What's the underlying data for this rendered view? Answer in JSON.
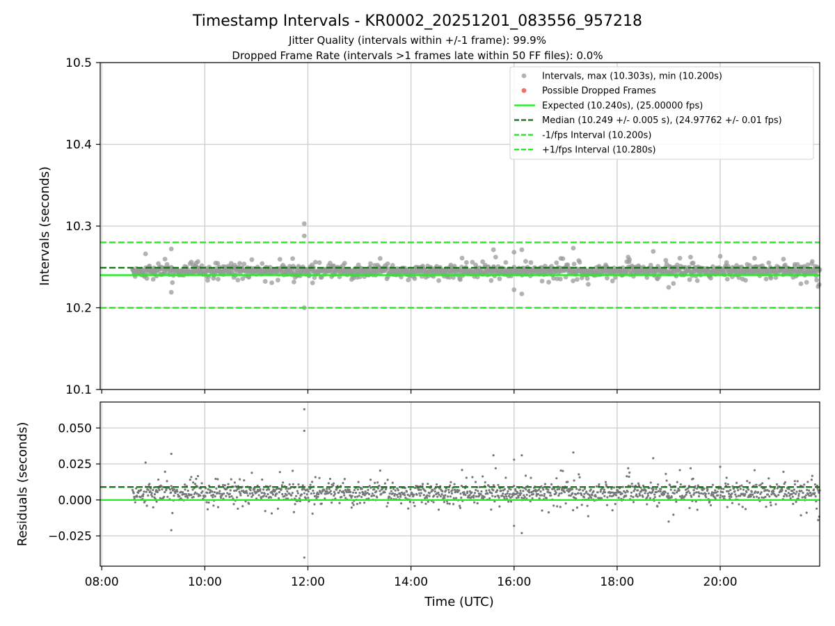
{
  "title": "Timestamp Intervals - KR0002_20251201_083556_957218",
  "subtitle1": "Jitter Quality (intervals within +/-1 frame): 99.9%",
  "subtitle2": "Dropped Frame Rate (intervals >1 frames late within 50 FF files): 0.0%",
  "colors": {
    "interval_points": "#999999",
    "residual_points": "#777777",
    "dropped": "#f0605e",
    "expected": "#22ee22",
    "median": "#117711",
    "bounds": "#22ee22",
    "grid": "#cccccc"
  },
  "chart_data": [
    {
      "type": "scatter",
      "name": "intervals-panel",
      "ylabel": "Intervals (seconds)",
      "ylim": [
        10.1,
        10.5
      ],
      "yticks": [
        10.1,
        10.2,
        10.3,
        10.4,
        10.5
      ],
      "ytick_labels": [
        "10.1",
        "10.2",
        "10.3",
        "10.4",
        "10.5"
      ],
      "xlim_hours": [
        7.97,
        21.93
      ],
      "grid": true,
      "legend_position": "top-right",
      "legend": [
        {
          "label": "Intervals, max (10.303s), min (10.200s)",
          "kind": "dot",
          "color": "#999999"
        },
        {
          "label": "Possible Dropped Frames",
          "kind": "dot",
          "color": "#f0605e"
        },
        {
          "label": "Expected (10.240s), (25.00000 fps)",
          "kind": "solid",
          "color": "#22ee22"
        },
        {
          "label": "Median (10.249 +/- 0.005 s), (24.97762 +/- 0.01 fps)",
          "kind": "dashed",
          "color": "#117711"
        },
        {
          "label": "-1/fps Interval (10.200s)",
          "kind": "dashed",
          "color": "#22ee22"
        },
        {
          "label": "+1/fps Interval (10.280s)",
          "kind": "dashed",
          "color": "#22ee22"
        }
      ],
      "reference_lines": [
        {
          "name": "expected",
          "value": 10.24,
          "style": "solid",
          "color": "#22ee22"
        },
        {
          "name": "median",
          "value": 10.249,
          "style": "dashed",
          "color": "#117711"
        },
        {
          "name": "minus-one-fps",
          "value": 10.2,
          "style": "dashed",
          "color": "#22ee22"
        },
        {
          "name": "plus-one-fps",
          "value": 10.28,
          "style": "dashed",
          "color": "#22ee22"
        }
      ],
      "data_range_hours": [
        8.6,
        21.93
      ],
      "typical_interval_range": [
        10.235,
        10.255
      ],
      "series": [
        {
          "name": "Intervals",
          "points": [
            [
              11.93,
              10.303
            ],
            [
              11.93,
              10.288
            ],
            [
              11.93,
              10.2
            ],
            [
              9.35,
              10.272
            ],
            [
              15.6,
              10.271
            ],
            [
              16.15,
              10.271
            ],
            [
              17.15,
              10.273
            ],
            [
              18.7,
              10.269
            ],
            [
              8.85,
              10.266
            ],
            [
              16.0,
              10.268
            ],
            [
              9.35,
              10.219
            ],
            [
              16.15,
              10.217
            ],
            [
              16.0,
              10.222
            ],
            [
              19.0,
              10.225
            ],
            [
              20.0,
              10.263
            ],
            [
              21.9,
              10.226
            ]
          ]
        },
        {
          "name": "Possible Dropped Frames",
          "points": []
        }
      ]
    },
    {
      "type": "scatter",
      "name": "residuals-panel",
      "ylabel": "Residuals (seconds)",
      "xlabel": "Time (UTC)",
      "ylim": [
        -0.046,
        0.068
      ],
      "yticks": [
        -0.025,
        0.0,
        0.025,
        0.05
      ],
      "ytick_labels": [
        "−0.025",
        "0.000",
        "0.025",
        "0.050"
      ],
      "xlim_hours": [
        7.97,
        21.93
      ],
      "xticks_hours": [
        8,
        10,
        12,
        14,
        16,
        18,
        20
      ],
      "xtick_labels": [
        "08:00",
        "10:00",
        "12:00",
        "14:00",
        "16:00",
        "18:00",
        "20:00"
      ],
      "grid": true,
      "reference_lines": [
        {
          "name": "zero",
          "value": 0.0,
          "style": "solid",
          "color": "#22ee22"
        },
        {
          "name": "median-offset",
          "value": 0.009,
          "style": "dashed",
          "color": "#117711"
        }
      ],
      "series": [
        {
          "name": "Residuals",
          "points": [
            [
              11.93,
              0.063
            ],
            [
              11.93,
              0.047
            ],
            [
              11.93,
              -0.04
            ],
            [
              9.35,
              0.032
            ],
            [
              15.6,
              0.029
            ],
            [
              16.0,
              0.028
            ],
            [
              17.15,
              0.033
            ],
            [
              18.7,
              0.029
            ],
            [
              9.35,
              -0.021
            ],
            [
              16.15,
              -0.023
            ],
            [
              16.0,
              -0.019
            ]
          ]
        }
      ]
    }
  ]
}
